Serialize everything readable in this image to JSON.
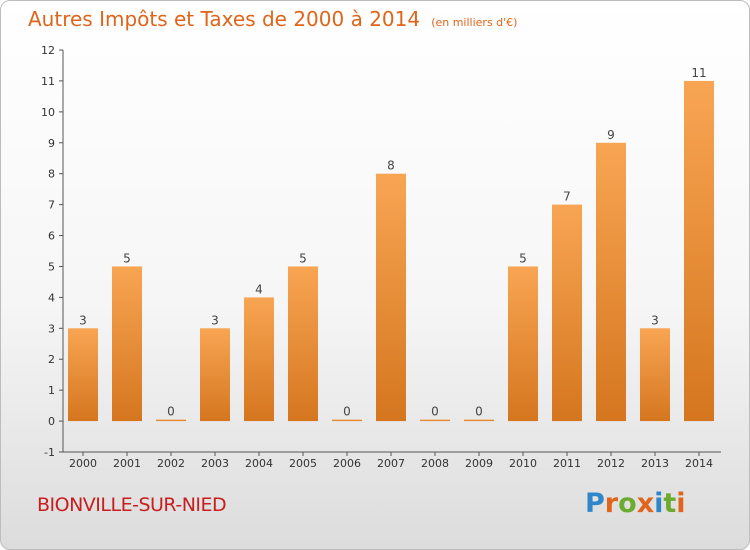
{
  "header": {
    "title": "Autres Impôts et Taxes de 2000 à 2014",
    "unit": "(en milliers d'€)"
  },
  "footer": {
    "commune": "BIONVILLE-SUR-NIED",
    "logo": {
      "text": "Proxiti",
      "letter_colors": [
        "#2f86c9",
        "#e0651a",
        "#6cab2f",
        "#e0651a",
        "#2f86c9",
        "#6cab2f",
        "#e0651a"
      ]
    }
  },
  "colors": {
    "bar_top": "#f8a553",
    "bar_bottom": "#d5761f",
    "title": "#e0651a",
    "commune": "#c81e1e",
    "axis": "#555555",
    "grid": "#cccccc"
  },
  "chart_data": {
    "type": "bar",
    "title": "Autres Impôts et Taxes de 2000 à 2014",
    "subtitle": "(en milliers d'€)",
    "categories": [
      "2000",
      "2001",
      "2002",
      "2003",
      "2004",
      "2005",
      "2006",
      "2007",
      "2008",
      "2009",
      "2010",
      "2011",
      "2012",
      "2013",
      "2014"
    ],
    "values": [
      3,
      5,
      0,
      3,
      4,
      5,
      0,
      8,
      0,
      0,
      5,
      7,
      9,
      3,
      11
    ],
    "data_labels": [
      "3",
      "5",
      "0",
      "3",
      "4",
      "5",
      "0",
      "8",
      "0",
      "0",
      "5",
      "7",
      "9",
      "3",
      "11"
    ],
    "ylim": [
      -1,
      12
    ],
    "yticks": [
      -1,
      0,
      1,
      2,
      3,
      4,
      5,
      6,
      7,
      8,
      9,
      10,
      11,
      12
    ],
    "grid": false,
    "legend": "none"
  }
}
